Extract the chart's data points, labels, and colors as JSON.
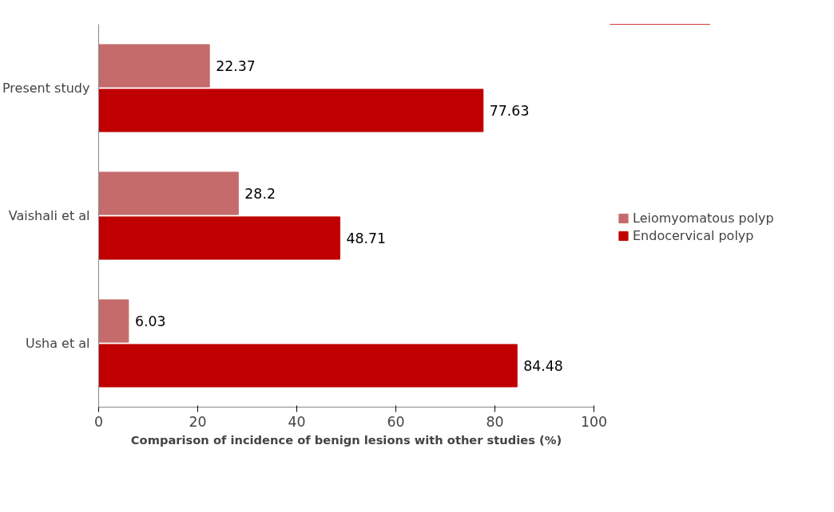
{
  "chart_data": {
    "type": "bar",
    "orientation": "horizontal",
    "xlabel": "Comparison of incidence of benign lesions with other studies (%)",
    "categories": [
      "Present study",
      "Vaishali et al",
      "Usha et al"
    ],
    "series": [
      {
        "name": "Leiomyomatous polyp",
        "color": "#c56b6b",
        "values": [
          22.37,
          28.2,
          6.03
        ]
      },
      {
        "name": "Endocervical polyp",
        "color": "#c00000",
        "values": [
          77.63,
          48.71,
          84.48
        ]
      }
    ],
    "xlim": [
      0,
      100
    ],
    "xticks": [
      0,
      20,
      40,
      60,
      80,
      100
    ],
    "grid": false,
    "legend": "right",
    "data_labels": true
  }
}
